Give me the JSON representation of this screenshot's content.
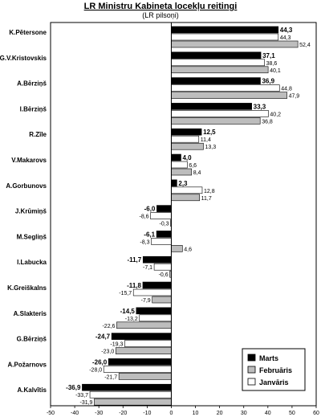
{
  "chart_data": {
    "type": "bar",
    "orientation": "horizontal",
    "title": "LR Ministru Kabineta locekļu reitingi",
    "subtitle": "(LR pilsoņi)",
    "categories": [
      "K.Pētersone",
      "G.V.Kristovskis",
      "A.Bērziņš",
      "I.Bērziņš",
      "R.Zīle",
      "V.Makarovs",
      "A.Gorbunovs",
      "J.Krūmiņš",
      "M.Segliņš",
      "I.Labucka",
      "K.Greiškalns",
      "A.Slakteris",
      "G.Bērziņš",
      "A.Požarnovs",
      "A.Kalvītis"
    ],
    "series": [
      {
        "name": "Marts",
        "color": "#000000",
        "values": [
          44.3,
          37.1,
          36.9,
          33.3,
          12.5,
          4.0,
          2.3,
          -6.0,
          -6.1,
          -11.7,
          -11.8,
          -14.5,
          -24.7,
          -26.0,
          -36.9
        ],
        "labels": [
          "44,3",
          "37,1",
          "36,9",
          "33,3",
          "12,5",
          "4,0",
          "2,3",
          "-6,0",
          "-6,1",
          "-11,7",
          "-11,8",
          "-14,5",
          "-24,7",
          "-26,0",
          "-36,9"
        ]
      },
      {
        "name": "Februāris",
        "color": "#ffffff",
        "values": [
          44.3,
          38.6,
          44.8,
          40.2,
          11.4,
          6.6,
          12.8,
          -8.6,
          -8.3,
          -7.1,
          -15.7,
          -13.2,
          -19.3,
          -28.0,
          -33.7
        ],
        "labels": [
          "44,3",
          "38,6",
          "44,8",
          "40,2",
          "11,4",
          "6,6",
          "12,8",
          "-8,6",
          "-8,3",
          "-7,1",
          "-15,7",
          "-13,2",
          "-19,3",
          "-28,0",
          "-33,7"
        ]
      },
      {
        "name": "Janvāris",
        "color": "#bdbdbd",
        "values": [
          52.4,
          40.1,
          47.9,
          36.8,
          13.3,
          8.4,
          11.7,
          -0.3,
          4.6,
          -0.6,
          -7.9,
          -22.6,
          -23.0,
          -21.7,
          -31.9
        ],
        "labels": [
          "52,4",
          "40,1",
          "47,9",
          "36,8",
          "13,3",
          "8,4",
          "11,7",
          "-0,3",
          "4,6",
          "-0,6",
          "-7,9",
          "-22,6",
          "-23,0",
          "-21,7",
          "-31,9"
        ]
      }
    ],
    "xlim": [
      -50,
      60
    ],
    "xticks": [
      "-50",
      "-40",
      "-30",
      "-20",
      "-10",
      "0",
      "10",
      "20",
      "30",
      "40",
      "50",
      "60"
    ],
    "legend": {
      "placement": "bottom-right",
      "entries": [
        {
          "name": "Marts",
          "color": "#000000"
        },
        {
          "name": "Februāris",
          "color": "#bdbdbd"
        },
        {
          "name": "Janvāris",
          "color": "#ffffff"
        }
      ]
    },
    "grid": false
  }
}
